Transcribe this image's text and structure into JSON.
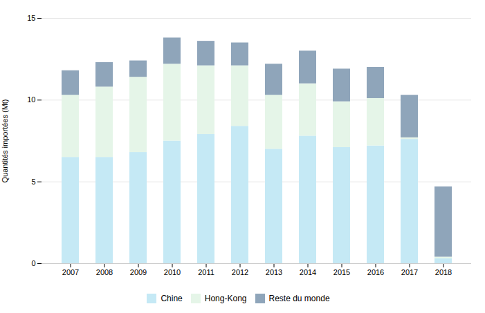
{
  "chart_data": {
    "type": "bar",
    "stacked": true,
    "categories": [
      "2007",
      "2008",
      "2009",
      "2010",
      "2011",
      "2012",
      "2013",
      "2014",
      "2015",
      "2016",
      "2017",
      "2018"
    ],
    "series": [
      {
        "name": "Chine",
        "color": "#c5e9f5",
        "values": [
          6.5,
          6.5,
          6.8,
          7.5,
          7.9,
          8.4,
          7.0,
          7.8,
          7.1,
          7.2,
          7.6,
          0.3
        ]
      },
      {
        "name": "Hong-Kong",
        "color": "#e5f5e8",
        "values": [
          3.8,
          4.3,
          4.6,
          4.7,
          4.2,
          3.7,
          3.3,
          3.2,
          2.8,
          2.9,
          0.1,
          0.1
        ]
      },
      {
        "name": "Reste du monde",
        "color": "#8fa5ba",
        "values": [
          1.5,
          1.5,
          1.0,
          1.6,
          1.5,
          1.4,
          1.9,
          2.0,
          2.0,
          1.9,
          2.6,
          4.3
        ]
      }
    ],
    "ylabel": "Quantités importées (Mt)",
    "ylim": [
      0,
      15
    ],
    "yticks": [
      0,
      5,
      10,
      15
    ],
    "grid": true,
    "legend": "bottom"
  }
}
